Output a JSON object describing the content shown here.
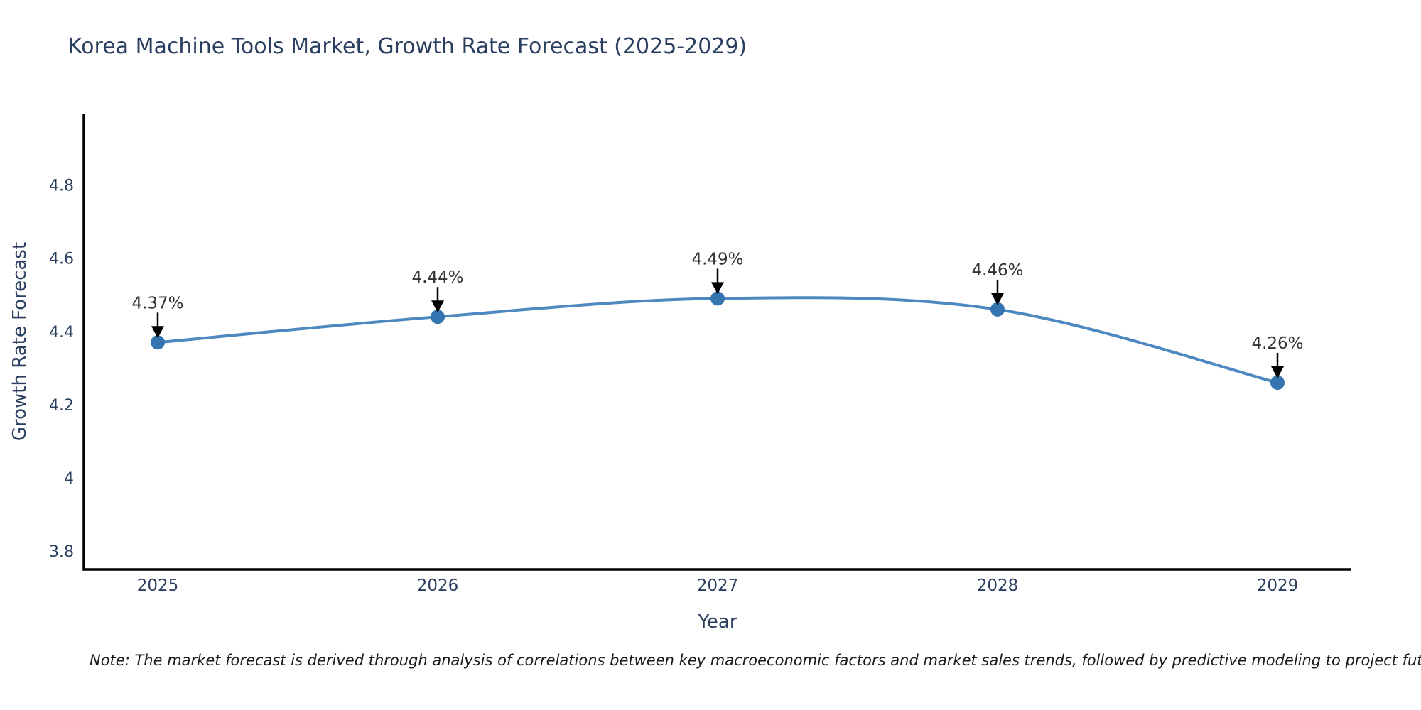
{
  "title": "Korea Machine Tools Market, Growth Rate Forecast (2025-2029)",
  "note": "Note: The market forecast is derived through analysis of correlations between key macroeconomic factors and market sales trends, followed by predictive modeling to project future sales",
  "chart_data": {
    "type": "line",
    "title": "Korea Machine Tools Market, Growth Rate Forecast (2025-2029)",
    "xlabel": "Year",
    "ylabel": "Growth Rate Forecast",
    "x": [
      2025,
      2026,
      2027,
      2028,
      2029
    ],
    "series": [
      {
        "name": "Growth Rate Forecast",
        "values": [
          4.37,
          4.44,
          4.49,
          4.46,
          4.26
        ]
      }
    ],
    "point_labels": [
      "4.37%",
      "4.44%",
      "4.49%",
      "4.46%",
      "4.26%"
    ],
    "xtick_labels": [
      "2025",
      "2026",
      "2027",
      "2028",
      "2029"
    ],
    "ytick_labels": [
      "4.8",
      "4.6",
      "4.4",
      "4.2",
      "4",
      "3.8"
    ],
    "ytick_values": [
      4.8,
      4.6,
      4.4,
      4.2,
      4.0,
      3.8
    ],
    "xlim": [
      2025,
      2029
    ],
    "ylim": [
      3.75,
      4.995
    ],
    "grid": false,
    "legend_position": "none",
    "smooth": true,
    "colors": {
      "line": "#4e88c0",
      "marker": "#3474b0",
      "axis": "#000000",
      "tick_label": "#2a3f5f",
      "axis_title": "#2a3f5f",
      "annotation_text": "#333333",
      "annotation_arrow": "#000000",
      "background": "#ffffff"
    }
  }
}
